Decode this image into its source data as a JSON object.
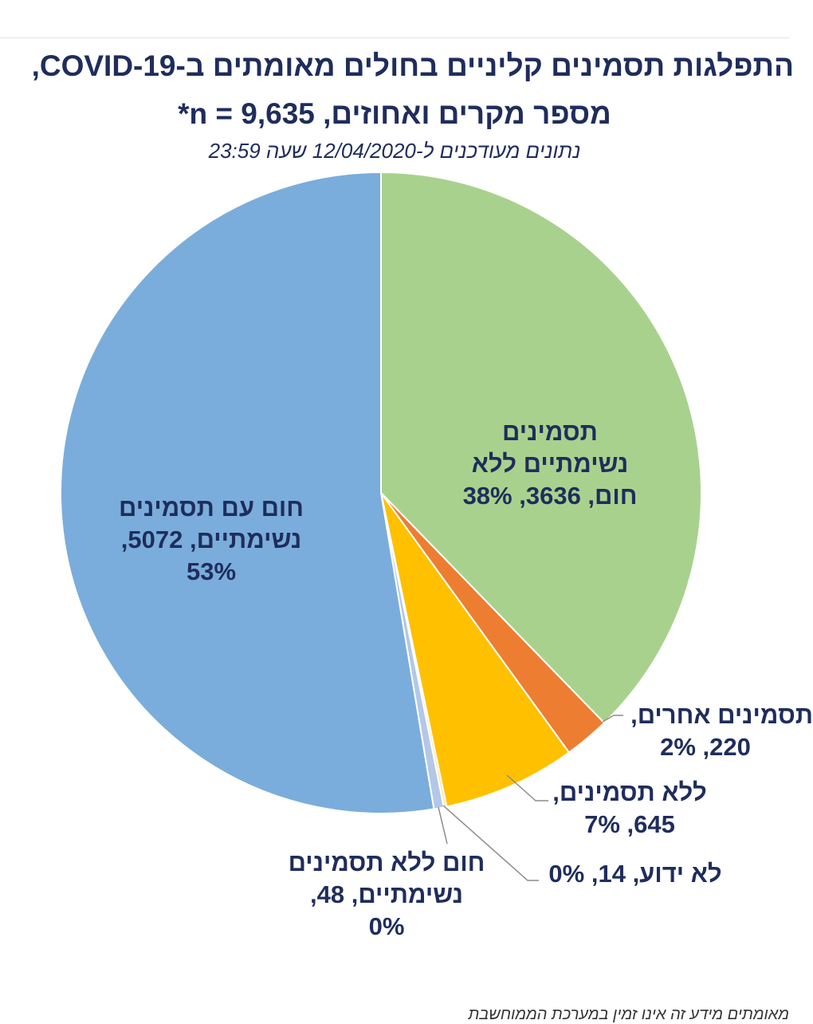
{
  "header": {
    "title": "התפלגות תסמינים קליניים בחולים מאומתים ב-COVID-19,",
    "subtitle": "מספר מקרים ואחוזים, n = 9,635*",
    "updated": "נתונים מעודכנים ל-12/04/2020 שעה 23:59"
  },
  "chart_data": {
    "type": "pie",
    "total": 9635,
    "slices": [
      {
        "lines": [
          "תסמינים",
          "נשימתיים ללא",
          "חום, 3636, 38%"
        ],
        "value": 3636,
        "percent": 38,
        "color": "#a9d18e"
      },
      {
        "lines": [
          "תסמינים אחרים,",
          "220, 2%"
        ],
        "value": 220,
        "percent": 2,
        "color": "#ed7d31"
      },
      {
        "lines": [
          "ללא תסמינים,",
          "645, 7%"
        ],
        "value": 645,
        "percent": 7,
        "color": "#ffc000"
      },
      {
        "lines": [
          "לא ידוע, 14, 0%"
        ],
        "value": 14,
        "percent": 0,
        "color": "#ffe699"
      },
      {
        "lines": [
          "חום ללא תסמינים",
          "נשימתיים, 48,",
          "0%"
        ],
        "value": 48,
        "percent": 0,
        "color": "#b4c7e7"
      },
      {
        "lines": [
          "חום עם תסמינים",
          "נשימתיים, 5072,",
          "53%"
        ],
        "value": 5072,
        "percent": 53,
        "color": "#7aaddb"
      }
    ]
  },
  "footer": {
    "note": "מאומתים מידע זה אינו זמין במערכת הממוחשבת"
  }
}
